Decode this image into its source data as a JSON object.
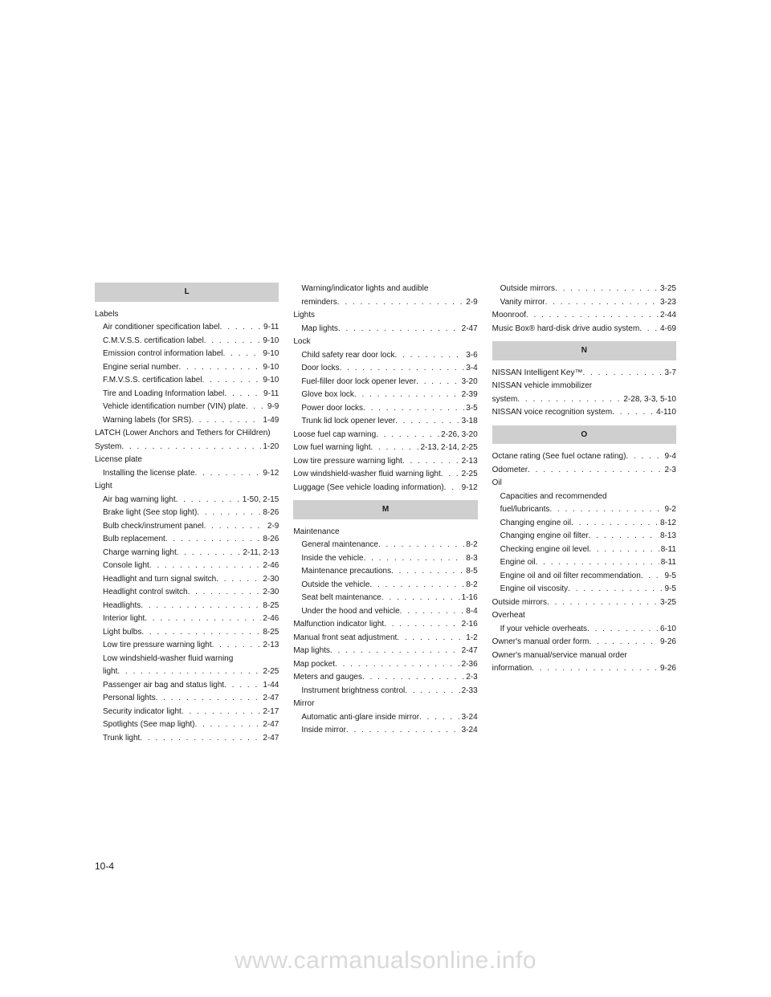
{
  "page_number": "10-4",
  "watermark": "www.carmanualsonline.info",
  "colors": {
    "header_bg": "#cfcfcf",
    "text": "#1a1a1a",
    "watermark": "#d9d9d9",
    "bg": "#ffffff"
  },
  "typography": {
    "body_pt": 10,
    "header_pt": 10,
    "pagenum_pt": 12,
    "watermark_pt": 30
  },
  "columns": [
    {
      "blocks": [
        {
          "type": "header",
          "text": "L"
        },
        {
          "type": "heading",
          "text": "Labels"
        },
        {
          "type": "entry",
          "indent": 1,
          "label": "Air conditioner specification label",
          "page": "9-11"
        },
        {
          "type": "entry",
          "indent": 1,
          "label": "C.M.V.S.S. certification label",
          "page": "9-10"
        },
        {
          "type": "entry",
          "indent": 1,
          "label": "Emission control information label",
          "page": "9-10"
        },
        {
          "type": "entry",
          "indent": 1,
          "label": "Engine serial number",
          "page": "9-10"
        },
        {
          "type": "entry",
          "indent": 1,
          "label": "F.M.V.S.S. certification label",
          "page": "9-10"
        },
        {
          "type": "entry",
          "indent": 1,
          "label": "Tire and Loading Information label",
          "page": "9-11"
        },
        {
          "type": "entry",
          "indent": 1,
          "label": "Vehicle identification number (VIN) plate",
          "page": "9-9"
        },
        {
          "type": "entry",
          "indent": 1,
          "label": "Warning labels (for SRS)",
          "page": "1-49"
        },
        {
          "type": "heading",
          "text": "LATCH (Lower Anchors and Tethers for CHildren)"
        },
        {
          "type": "entry",
          "indent": 0,
          "label": "System",
          "page": "1-20"
        },
        {
          "type": "heading",
          "text": "License plate"
        },
        {
          "type": "entry",
          "indent": 1,
          "label": "Installing the license plate",
          "page": "9-12"
        },
        {
          "type": "heading",
          "text": "Light"
        },
        {
          "type": "entry",
          "indent": 1,
          "label": "Air bag warning light",
          "page": "1-50, 2-15"
        },
        {
          "type": "entry",
          "indent": 1,
          "label": "Brake light (See stop light)",
          "page": "8-26"
        },
        {
          "type": "entry",
          "indent": 1,
          "label": "Bulb check/instrument panel",
          "page": "2-9"
        },
        {
          "type": "entry",
          "indent": 1,
          "label": "Bulb replacement",
          "page": "8-26"
        },
        {
          "type": "entry",
          "indent": 1,
          "label": "Charge warning light",
          "page": "2-11, 2-13"
        },
        {
          "type": "entry",
          "indent": 1,
          "label": "Console light",
          "page": "2-46"
        },
        {
          "type": "entry",
          "indent": 1,
          "label": "Headlight and turn signal switch",
          "page": "2-30"
        },
        {
          "type": "entry",
          "indent": 1,
          "label": "Headlight control switch",
          "page": "2-30"
        },
        {
          "type": "entry",
          "indent": 1,
          "label": "Headlights",
          "page": "8-25"
        },
        {
          "type": "entry",
          "indent": 1,
          "label": "Interior light",
          "page": "2-46"
        },
        {
          "type": "entry",
          "indent": 1,
          "label": "Light bulbs",
          "page": "8-25"
        },
        {
          "type": "entry",
          "indent": 1,
          "label": "Low tire pressure warning light",
          "page": "2-13"
        },
        {
          "type": "heading",
          "indent": 1,
          "text": "Low windshield-washer fluid warning"
        },
        {
          "type": "entry",
          "indent": 1,
          "label": "light",
          "page": "2-25"
        },
        {
          "type": "entry",
          "indent": 1,
          "label": "Passenger air bag and status light",
          "page": "1-44"
        },
        {
          "type": "entry",
          "indent": 1,
          "label": "Personal lights",
          "page": "2-47"
        },
        {
          "type": "entry",
          "indent": 1,
          "label": "Security indicator light",
          "page": "2-17"
        },
        {
          "type": "entry",
          "indent": 1,
          "label": "Spotlights (See map light)",
          "page": "2-47"
        },
        {
          "type": "entry",
          "indent": 1,
          "label": "Trunk light",
          "page": "2-47"
        }
      ]
    },
    {
      "blocks": [
        {
          "type": "heading",
          "indent": 1,
          "text": "Warning/indicator lights and audible"
        },
        {
          "type": "entry",
          "indent": 1,
          "label": "reminders",
          "page": "2-9"
        },
        {
          "type": "heading",
          "text": "Lights"
        },
        {
          "type": "entry",
          "indent": 1,
          "label": "Map lights",
          "page": "2-47"
        },
        {
          "type": "heading",
          "text": "Lock"
        },
        {
          "type": "entry",
          "indent": 1,
          "label": "Child safety rear door lock",
          "page": "3-6"
        },
        {
          "type": "entry",
          "indent": 1,
          "label": "Door locks",
          "page": "3-4"
        },
        {
          "type": "entry",
          "indent": 1,
          "label": "Fuel-filler door lock opener lever",
          "page": "3-20"
        },
        {
          "type": "entry",
          "indent": 1,
          "label": "Glove box lock",
          "page": "2-39"
        },
        {
          "type": "entry",
          "indent": 1,
          "label": "Power door locks",
          "page": "3-5"
        },
        {
          "type": "entry",
          "indent": 1,
          "label": "Trunk lid lock opener lever",
          "page": "3-18"
        },
        {
          "type": "entry",
          "indent": 0,
          "label": "Loose fuel cap warning",
          "page": "2-26, 3-20"
        },
        {
          "type": "entry",
          "indent": 0,
          "label": "Low fuel warning light",
          "page": "2-13, 2-14, 2-25"
        },
        {
          "type": "entry",
          "indent": 0,
          "label": "Low tire pressure warning light",
          "page": "2-13"
        },
        {
          "type": "entry",
          "indent": 0,
          "label": "Low windshield-washer fluid warning light",
          "page": "2-25"
        },
        {
          "type": "entry",
          "indent": 0,
          "label": "Luggage (See vehicle loading information)",
          "page": "9-12"
        },
        {
          "type": "header",
          "text": "M"
        },
        {
          "type": "heading",
          "text": "Maintenance"
        },
        {
          "type": "entry",
          "indent": 1,
          "label": "General maintenance",
          "page": "8-2"
        },
        {
          "type": "entry",
          "indent": 1,
          "label": "Inside the vehicle",
          "page": "8-3"
        },
        {
          "type": "entry",
          "indent": 1,
          "label": "Maintenance precautions",
          "page": "8-5"
        },
        {
          "type": "entry",
          "indent": 1,
          "label": "Outside the vehicle",
          "page": "8-2"
        },
        {
          "type": "entry",
          "indent": 1,
          "label": "Seat belt maintenance",
          "page": "1-16"
        },
        {
          "type": "entry",
          "indent": 1,
          "label": "Under the hood and vehicle",
          "page": "8-4"
        },
        {
          "type": "entry",
          "indent": 0,
          "label": "Malfunction indicator light",
          "page": "2-16"
        },
        {
          "type": "entry",
          "indent": 0,
          "label": "Manual front seat adjustment",
          "page": "1-2"
        },
        {
          "type": "entry",
          "indent": 0,
          "label": "Map lights",
          "page": "2-47"
        },
        {
          "type": "entry",
          "indent": 0,
          "label": "Map pocket",
          "page": "2-36"
        },
        {
          "type": "entry",
          "indent": 0,
          "label": "Meters and gauges",
          "page": "2-3"
        },
        {
          "type": "entry",
          "indent": 1,
          "label": "Instrument brightness control",
          "page": "2-33"
        },
        {
          "type": "heading",
          "text": "Mirror"
        },
        {
          "type": "entry",
          "indent": 1,
          "label": "Automatic anti-glare inside mirror",
          "page": "3-24"
        },
        {
          "type": "entry",
          "indent": 1,
          "label": "Inside mirror",
          "page": "3-24"
        }
      ]
    },
    {
      "blocks": [
        {
          "type": "entry",
          "indent": 1,
          "label": "Outside mirrors",
          "page": "3-25"
        },
        {
          "type": "entry",
          "indent": 1,
          "label": "Vanity mirror",
          "page": "3-23"
        },
        {
          "type": "entry",
          "indent": 0,
          "label": "Moonroof",
          "page": "2-44"
        },
        {
          "type": "entry",
          "indent": 0,
          "label": "Music Box® hard-disk drive audio system",
          "page": "4-69"
        },
        {
          "type": "header",
          "text": "N"
        },
        {
          "type": "entry",
          "indent": 0,
          "label": "NISSAN Intelligent Key™",
          "page": "3-7"
        },
        {
          "type": "heading",
          "text": "NISSAN vehicle immobilizer"
        },
        {
          "type": "entry",
          "indent": 0,
          "label": "system",
          "page": "2-28, 3-3, 5-10"
        },
        {
          "type": "entry",
          "indent": 0,
          "label": "NISSAN voice recognition system",
          "page": "4-110"
        },
        {
          "type": "header",
          "text": "O"
        },
        {
          "type": "entry",
          "indent": 0,
          "label": "Octane rating (See fuel octane rating)",
          "page": "9-4"
        },
        {
          "type": "entry",
          "indent": 0,
          "label": "Odometer",
          "page": "2-3"
        },
        {
          "type": "heading",
          "text": "Oil"
        },
        {
          "type": "heading",
          "indent": 1,
          "text": "Capacities and recommended"
        },
        {
          "type": "entry",
          "indent": 1,
          "label": "fuel/lubricants",
          "page": "9-2"
        },
        {
          "type": "entry",
          "indent": 1,
          "label": "Changing engine oil",
          "page": "8-12"
        },
        {
          "type": "entry",
          "indent": 1,
          "label": "Changing engine oil filter",
          "page": "8-13"
        },
        {
          "type": "entry",
          "indent": 1,
          "label": "Checking engine oil level",
          "page": "8-11"
        },
        {
          "type": "entry",
          "indent": 1,
          "label": "Engine oil",
          "page": "8-11"
        },
        {
          "type": "entry",
          "indent": 1,
          "label": "Engine oil and oil filter recommendation",
          "page": "9-5"
        },
        {
          "type": "entry",
          "indent": 1,
          "label": "Engine oil viscosity",
          "page": "9-5"
        },
        {
          "type": "entry",
          "indent": 0,
          "label": "Outside mirrors",
          "page": "3-25"
        },
        {
          "type": "heading",
          "text": "Overheat"
        },
        {
          "type": "entry",
          "indent": 1,
          "label": "If your vehicle overheats",
          "page": "6-10"
        },
        {
          "type": "entry",
          "indent": 0,
          "label": "Owner's manual order form",
          "page": "9-26"
        },
        {
          "type": "heading",
          "text": "Owner's manual/service manual order"
        },
        {
          "type": "entry",
          "indent": 0,
          "label": "information",
          "page": "9-26"
        }
      ]
    }
  ]
}
